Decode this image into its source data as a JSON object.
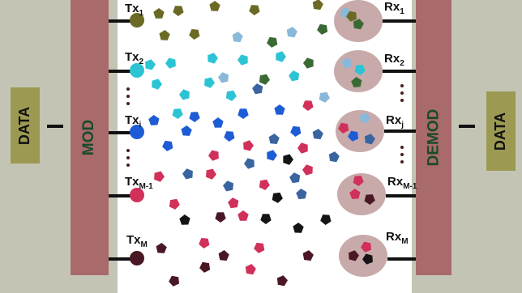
{
  "left_data_label": "DATA",
  "mod_label": "MOD",
  "demod_label": "DEMOD",
  "right_data_label": "DATA",
  "transmitters": [
    {
      "base": "Tx",
      "sub": "1",
      "color": "#6b6a24"
    },
    {
      "base": "Tx",
      "sub": "2",
      "color": "#2cc4d4"
    },
    {
      "base": "Tx",
      "sub": "i",
      "color": "#1e5cd6"
    },
    {
      "base": "Tx",
      "sub": "M-1",
      "color": "#d0305a"
    },
    {
      "base": "Tx",
      "sub": "M",
      "color": "#4a1824"
    }
  ],
  "receivers": [
    {
      "base": "Rx",
      "sub": "1"
    },
    {
      "base": "Rx",
      "sub": "2"
    },
    {
      "base": "Rx",
      "sub": "j"
    },
    {
      "base": "Rx",
      "sub": "M-1"
    },
    {
      "base": "Rx",
      "sub": "M"
    }
  ],
  "molecule_colors": {
    "olive": "#6b6a24",
    "cyan": "#2cc4d4",
    "lightblue": "#8ab8d8",
    "green": "#3a6a34",
    "blue": "#1e5cd6",
    "steel": "#3a64a0",
    "pink": "#d0305a",
    "black": "#141414",
    "maroon": "#4a1824"
  }
}
